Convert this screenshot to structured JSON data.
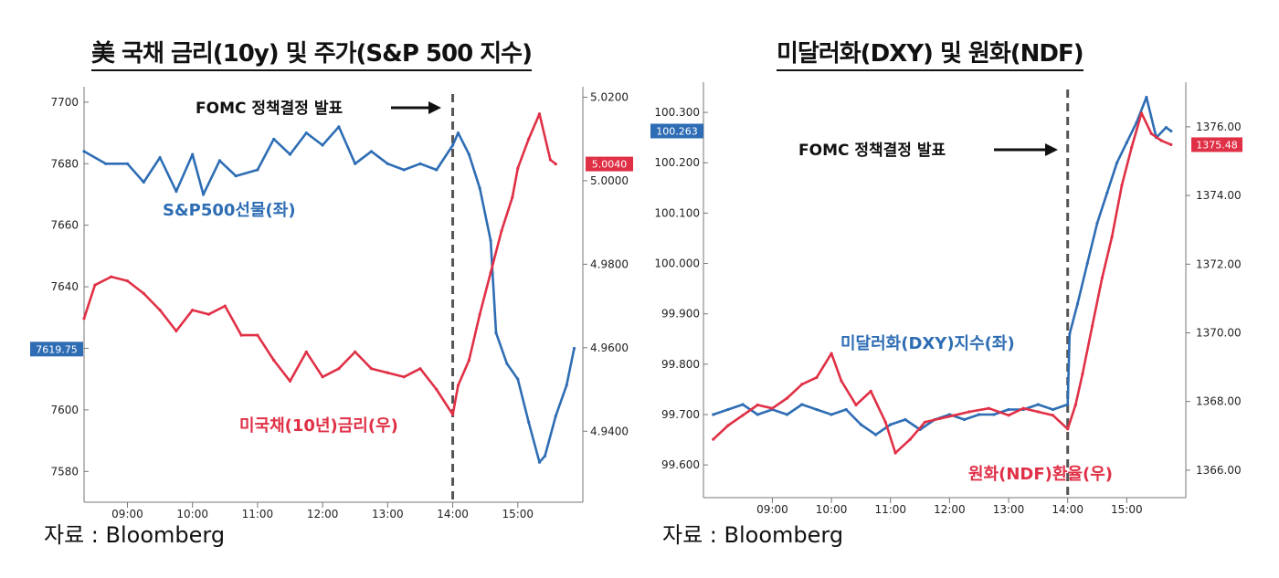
{
  "chart_data": [
    {
      "type": "line",
      "title": "美 국채 금리(10y)  및  주가(S&P 500 지수)",
      "source": "자료 : Bloomberg",
      "annotation": "FOMC 정책결정 발표",
      "event_time": "14:00",
      "x_ticks": [
        "09:00",
        "10:00",
        "11:00",
        "12:00",
        "13:00",
        "14:00",
        "15:00"
      ],
      "y_left": {
        "ticks": [
          7580,
          7600,
          7620,
          7640,
          7660,
          7680,
          7700
        ],
        "range": [
          7570,
          7705
        ]
      },
      "y_right": {
        "ticks": [
          "4.9400",
          "4.9600",
          "4.9800",
          "5.0000",
          "5.0200"
        ],
        "range": [
          4.923,
          5.0225
        ]
      },
      "last_value_left": "7619.75",
      "last_value_right": "5.0040",
      "series": [
        {
          "name": "S&P500선물(좌)",
          "axis": "left",
          "color": "#2e6db4",
          "points": [
            [
              "08:20",
              7684
            ],
            [
              "08:40",
              7680
            ],
            [
              "09:00",
              7680
            ],
            [
              "09:15",
              7674
            ],
            [
              "09:30",
              7682
            ],
            [
              "09:45",
              7671
            ],
            [
              "10:00",
              7683
            ],
            [
              "10:10",
              7670
            ],
            [
              "10:25",
              7681
            ],
            [
              "10:40",
              7676
            ],
            [
              "11:00",
              7678
            ],
            [
              "11:15",
              7688
            ],
            [
              "11:30",
              7683
            ],
            [
              "11:45",
              7690
            ],
            [
              "12:00",
              7686
            ],
            [
              "12:15",
              7692
            ],
            [
              "12:30",
              7680
            ],
            [
              "12:45",
              7684
            ],
            [
              "13:00",
              7680
            ],
            [
              "13:15",
              7678
            ],
            [
              "13:30",
              7680
            ],
            [
              "13:45",
              7678
            ],
            [
              "14:00",
              7686
            ],
            [
              "14:05",
              7690
            ],
            [
              "14:15",
              7683
            ],
            [
              "14:25",
              7672
            ],
            [
              "14:35",
              7655
            ],
            [
              "14:40",
              7625
            ],
            [
              "14:50",
              7615
            ],
            [
              "15:00",
              7610
            ],
            [
              "15:10",
              7596
            ],
            [
              "15:20",
              7583
            ],
            [
              "15:25",
              7585
            ],
            [
              "15:35",
              7598
            ],
            [
              "15:45",
              7608
            ],
            [
              "15:52",
              7620
            ]
          ]
        },
        {
          "name": "미국채(10년)금리(우)",
          "axis": "right",
          "color": "#e03046",
          "points": [
            [
              "08:20",
              4.967
            ],
            [
              "08:30",
              4.975
            ],
            [
              "08:45",
              4.977
            ],
            [
              "09:00",
              4.976
            ],
            [
              "09:15",
              4.973
            ],
            [
              "09:30",
              4.969
            ],
            [
              "09:45",
              4.964
            ],
            [
              "10:00",
              4.969
            ],
            [
              "10:15",
              4.968
            ],
            [
              "10:30",
              4.97
            ],
            [
              "10:45",
              4.963
            ],
            [
              "11:00",
              4.963
            ],
            [
              "11:15",
              4.957
            ],
            [
              "11:30",
              4.952
            ],
            [
              "11:45",
              4.959
            ],
            [
              "12:00",
              4.953
            ],
            [
              "12:15",
              4.955
            ],
            [
              "12:30",
              4.959
            ],
            [
              "12:45",
              4.955
            ],
            [
              "13:00",
              4.954
            ],
            [
              "13:15",
              4.953
            ],
            [
              "13:30",
              4.955
            ],
            [
              "13:45",
              4.95
            ],
            [
              "14:00",
              4.944
            ],
            [
              "14:05",
              4.951
            ],
            [
              "14:15",
              4.957
            ],
            [
              "14:25",
              4.968
            ],
            [
              "14:35",
              4.978
            ],
            [
              "14:45",
              4.988
            ],
            [
              "14:55",
              4.996
            ],
            [
              "15:00",
              5.003
            ],
            [
              "15:10",
              5.01
            ],
            [
              "15:20",
              5.016
            ],
            [
              "15:30",
              5.005
            ],
            [
              "15:35",
              5.004
            ]
          ]
        }
      ]
    },
    {
      "type": "line",
      "title": "미달러화(DXY)  및  원화(NDF)",
      "source": "자료 : Bloomberg",
      "annotation": "FOMC 정책결정 발표",
      "event_time": "14:00",
      "x_ticks": [
        "09:00",
        "10:00",
        "11:00",
        "12:00",
        "13:00",
        "14:00",
        "15:00"
      ],
      "y_left": {
        "ticks": [
          "99.600",
          "99.700",
          "99.800",
          "99.900",
          "100.000",
          "100.100",
          "100.200",
          "100.300"
        ],
        "range": [
          99.535,
          100.36
        ]
      },
      "y_right": {
        "ticks": [
          "1366.00",
          "1368.00",
          "1370.00",
          "1372.00",
          "1374.00",
          "1376.00"
        ],
        "range": [
          1365.2,
          1377.3
        ]
      },
      "last_value_left": "100.263",
      "last_value_right": "1375.48",
      "series": [
        {
          "name": "미달러화(DXY)지수(좌)",
          "axis": "left",
          "color": "#2e6db4",
          "points": [
            [
              "08:00",
              99.7
            ],
            [
              "08:15",
              99.71
            ],
            [
              "08:30",
              99.72
            ],
            [
              "08:45",
              99.7
            ],
            [
              "09:00",
              99.71
            ],
            [
              "09:15",
              99.7
            ],
            [
              "09:30",
              99.72
            ],
            [
              "09:45",
              99.71
            ],
            [
              "10:00",
              99.7
            ],
            [
              "10:15",
              99.71
            ],
            [
              "10:30",
              99.68
            ],
            [
              "10:45",
              99.66
            ],
            [
              "11:00",
              99.68
            ],
            [
              "11:15",
              99.69
            ],
            [
              "11:30",
              99.67
            ],
            [
              "11:45",
              99.69
            ],
            [
              "12:00",
              99.7
            ],
            [
              "12:15",
              99.69
            ],
            [
              "12:30",
              99.7
            ],
            [
              "12:45",
              99.7
            ],
            [
              "13:00",
              99.71
            ],
            [
              "13:15",
              99.71
            ],
            [
              "13:30",
              99.72
            ],
            [
              "13:45",
              99.71
            ],
            [
              "14:00",
              99.72
            ],
            [
              "14:02",
              99.86
            ],
            [
              "14:10",
              99.92
            ],
            [
              "14:20",
              100.0
            ],
            [
              "14:30",
              100.08
            ],
            [
              "14:40",
              100.14
            ],
            [
              "14:50",
              100.2
            ],
            [
              "15:00",
              100.24
            ],
            [
              "15:10",
              100.28
            ],
            [
              "15:20",
              100.33
            ],
            [
              "15:30",
              100.25
            ],
            [
              "15:40",
              100.27
            ],
            [
              "15:45",
              100.263
            ]
          ]
        },
        {
          "name": "원화(NDF)환율(우)",
          "axis": "right",
          "color": "#e03046",
          "points": [
            [
              "08:00",
              1366.9
            ],
            [
              "08:15",
              1367.3
            ],
            [
              "08:30",
              1367.6
            ],
            [
              "08:45",
              1367.9
            ],
            [
              "09:00",
              1367.8
            ],
            [
              "09:15",
              1368.1
            ],
            [
              "09:30",
              1368.5
            ],
            [
              "09:45",
              1368.7
            ],
            [
              "10:00",
              1369.4
            ],
            [
              "10:10",
              1368.6
            ],
            [
              "10:25",
              1367.9
            ],
            [
              "10:40",
              1368.3
            ],
            [
              "10:55",
              1367.4
            ],
            [
              "11:05",
              1366.5
            ],
            [
              "11:20",
              1366.9
            ],
            [
              "11:35",
              1367.4
            ],
            [
              "11:50",
              1367.5
            ],
            [
              "12:05",
              1367.6
            ],
            [
              "12:20",
              1367.7
            ],
            [
              "12:40",
              1367.8
            ],
            [
              "13:00",
              1367.6
            ],
            [
              "13:15",
              1367.8
            ],
            [
              "13:30",
              1367.7
            ],
            [
              "13:45",
              1367.6
            ],
            [
              "14:00",
              1367.2
            ],
            [
              "14:08",
              1367.9
            ],
            [
              "14:15",
              1368.8
            ],
            [
              "14:25",
              1370.2
            ],
            [
              "14:35",
              1371.6
            ],
            [
              "14:45",
              1372.8
            ],
            [
              "14:55",
              1374.3
            ],
            [
              "15:05",
              1375.4
            ],
            [
              "15:15",
              1376.4
            ],
            [
              "15:25",
              1375.8
            ],
            [
              "15:35",
              1375.6
            ],
            [
              "15:45",
              1375.48
            ]
          ]
        }
      ]
    }
  ]
}
